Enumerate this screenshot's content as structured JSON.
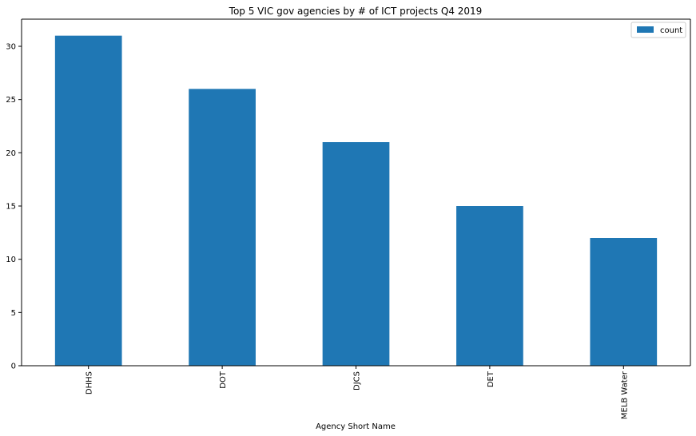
{
  "chart_data": {
    "type": "bar",
    "title": "Top 5 VIC gov agencies by # of ICT projects Q4 2019",
    "xlabel": "Agency Short Name",
    "ylabel": "",
    "categories": [
      "DHHS",
      "DOT",
      "DJCS",
      "DET",
      "MELB Water"
    ],
    "series": [
      {
        "name": "count",
        "values": [
          31,
          26,
          21,
          15,
          12
        ],
        "color": "#1f77b4"
      }
    ],
    "ylim": [
      0,
      32.55
    ],
    "yticks": [
      0,
      5,
      10,
      15,
      20,
      25,
      30
    ],
    "grid": false,
    "legend_position": "top-right"
  }
}
